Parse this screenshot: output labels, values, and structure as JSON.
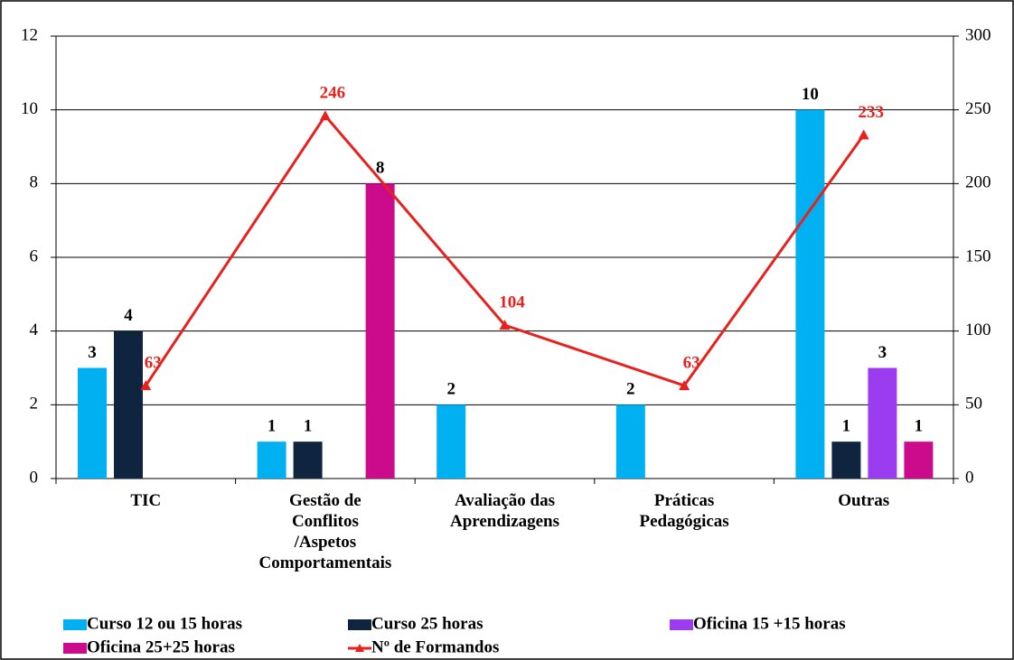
{
  "chart_data": {
    "type": "bar",
    "categories": [
      "TIC",
      "Gestão de Conflitos /Aspetos Comportamentais",
      "Avaliação das Aprendizagens",
      "Práticas Pedagógicas",
      "Outras"
    ],
    "series": [
      {
        "name": "Curso 12 ou  15 horas",
        "color": "#00b0f0",
        "values": [
          3,
          1,
          2,
          2,
          10
        ]
      },
      {
        "name": "Curso 25 horas",
        "color": "#0f243e",
        "values": [
          4,
          1,
          null,
          null,
          1
        ]
      },
      {
        "name": "Oficina 15 +15 horas",
        "color": "#9b3cf0",
        "values": [
          null,
          null,
          null,
          null,
          3
        ]
      },
      {
        "name": "Oficina 25+25 horas",
        "color": "#cc0a8c",
        "values": [
          null,
          8,
          null,
          null,
          1
        ]
      },
      {
        "name": "Nº de Formandos",
        "color": "#e8211d",
        "type": "line",
        "axis": "y2",
        "values": [
          63,
          246,
          104,
          63,
          233
        ]
      }
    ],
    "ylim": [
      0,
      12
    ],
    "yticks": [
      0,
      2,
      4,
      6,
      8,
      10,
      12
    ],
    "y2lim": [
      0,
      300
    ],
    "y2ticks": [
      0,
      50,
      100,
      150,
      200,
      250,
      300
    ],
    "grid": true,
    "legend": "bottom"
  }
}
